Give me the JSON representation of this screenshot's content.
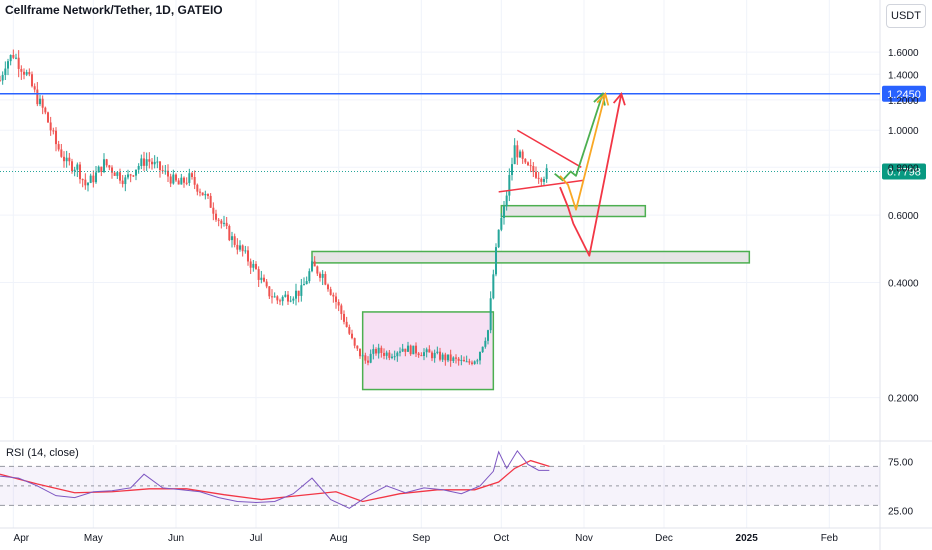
{
  "header": {
    "title": "Cellframe Network/Tether, 1D, GATEIO",
    "currency": "USDT"
  },
  "rsi": {
    "label": "RSI (14, close)",
    "ticks": [
      {
        "v": 75,
        "label": "75.00"
      },
      {
        "v": 25,
        "label": "25.00"
      }
    ]
  },
  "colors": {
    "up": "#26a69a",
    "down": "#ef5350",
    "level": "#2962ff",
    "zone_green": "#4caf50",
    "zone_fill": "#e0e0e0",
    "range_fill": "#f3d3f0",
    "rsi_line": "#7e57c2",
    "rsi_ma": "#f23645",
    "arrow_green": "#4caf50",
    "arrow_orange": "#f9a825",
    "arrow_red": "#f23645"
  },
  "chart_data": {
    "type": "candlestick",
    "y_scale": "log",
    "ylim": [
      0.155,
      1.85
    ],
    "y_ticks": [
      {
        "v": 1.6,
        "label": "1.6000"
      },
      {
        "v": 1.4,
        "label": "1.4000"
      },
      {
        "v": 1.2,
        "label": "1.2000"
      },
      {
        "v": 1.0,
        "label": "1.0000"
      },
      {
        "v": 0.8,
        "label": "0.8000"
      },
      {
        "v": 0.6,
        "label": "0.6000"
      },
      {
        "v": 0.4,
        "label": "0.4000"
      },
      {
        "v": 0.2,
        "label": "0.2000"
      }
    ],
    "x_ticks": [
      {
        "date": "2024-04-01",
        "label": "Apr"
      },
      {
        "date": "2024-05-01",
        "label": "May"
      },
      {
        "date": "2024-06-01",
        "label": "Jun"
      },
      {
        "date": "2024-07-01",
        "label": "Jul"
      },
      {
        "date": "2024-08-01",
        "label": "Aug"
      },
      {
        "date": "2024-09-01",
        "label": "Sep"
      },
      {
        "date": "2024-10-01",
        "label": "Oct"
      },
      {
        "date": "2024-11-01",
        "label": "Nov"
      },
      {
        "date": "2024-12-01",
        "label": "Dec"
      },
      {
        "date": "2025-01-01",
        "label": "2025"
      },
      {
        "date": "2025-02-01",
        "label": "Feb"
      }
    ],
    "price_path": [
      [
        "2024-03-27",
        1.35
      ],
      [
        "2024-03-29",
        1.5
      ],
      [
        "2024-04-01",
        1.58
      ],
      [
        "2024-04-03",
        1.5
      ],
      [
        "2024-04-06",
        1.4
      ],
      [
        "2024-04-09",
        1.25
      ],
      [
        "2024-04-13",
        1.1
      ],
      [
        "2024-04-17",
        0.92
      ],
      [
        "2024-04-21",
        0.82
      ],
      [
        "2024-04-25",
        0.8
      ],
      [
        "2024-04-28",
        0.72
      ],
      [
        "2024-05-01",
        0.75
      ],
      [
        "2024-05-05",
        0.82
      ],
      [
        "2024-05-09",
        0.78
      ],
      [
        "2024-05-13",
        0.74
      ],
      [
        "2024-05-17",
        0.8
      ],
      [
        "2024-05-21",
        0.84
      ],
      [
        "2024-05-25",
        0.8
      ],
      [
        "2024-05-29",
        0.76
      ],
      [
        "2024-06-02",
        0.72
      ],
      [
        "2024-06-06",
        0.75
      ],
      [
        "2024-06-10",
        0.7
      ],
      [
        "2024-06-14",
        0.64
      ],
      [
        "2024-06-18",
        0.57
      ],
      [
        "2024-06-22",
        0.52
      ],
      [
        "2024-06-26",
        0.48
      ],
      [
        "2024-07-01",
        0.43
      ],
      [
        "2024-07-05",
        0.38
      ],
      [
        "2024-07-09",
        0.36
      ],
      [
        "2024-07-13",
        0.37
      ],
      [
        "2024-07-18",
        0.38
      ],
      [
        "2024-07-22",
        0.44
      ],
      [
        "2024-07-26",
        0.42
      ],
      [
        "2024-07-30",
        0.37
      ],
      [
        "2024-08-03",
        0.32
      ],
      [
        "2024-08-07",
        0.27
      ],
      [
        "2024-08-11",
        0.25
      ],
      [
        "2024-08-15",
        0.265
      ],
      [
        "2024-08-20",
        0.26
      ],
      [
        "2024-08-25",
        0.27
      ],
      [
        "2024-08-30",
        0.265
      ],
      [
        "2024-09-04",
        0.26
      ],
      [
        "2024-09-09",
        0.255
      ],
      [
        "2024-09-14",
        0.25
      ],
      [
        "2024-09-18",
        0.245
      ],
      [
        "2024-09-22",
        0.255
      ],
      [
        "2024-09-26",
        0.3
      ],
      [
        "2024-09-28",
        0.42
      ],
      [
        "2024-09-30",
        0.55
      ],
      [
        "2024-10-02",
        0.62
      ],
      [
        "2024-10-04",
        0.75
      ],
      [
        "2024-10-06",
        0.9
      ],
      [
        "2024-10-08",
        0.85
      ],
      [
        "2024-10-10",
        0.8
      ],
      [
        "2024-10-13",
        0.78
      ],
      [
        "2024-10-16",
        0.76
      ],
      [
        "2024-10-19",
        0.78
      ]
    ],
    "last_price": 0.7798,
    "last_price_label": "0.7798",
    "level": {
      "value": 1.245,
      "label": "1.2450"
    },
    "zones": [
      {
        "x0": "2024-07-22",
        "x1": "2025-01-02",
        "y0": 0.45,
        "y1": 0.482
      },
      {
        "x0": "2024-10-01",
        "x1": "2024-11-24",
        "y0": 0.595,
        "y1": 0.635
      }
    ],
    "range_box": {
      "x0": "2024-08-10",
      "x1": "2024-09-28",
      "y0": 0.21,
      "y1": 0.335
    },
    "triangle": {
      "upper": [
        [
          "2024-10-07",
          1.0
        ],
        [
          "2024-10-31",
          0.8
        ]
      ],
      "lower": [
        [
          "2024-09-30",
          0.69
        ],
        [
          "2024-11-01",
          0.74
        ]
      ]
    },
    "scenarios": [
      {
        "color": "green",
        "path": [
          [
            "2024-10-21",
            0.77
          ],
          [
            "2024-10-24",
            0.74
          ],
          [
            "2024-10-27",
            0.78
          ],
          [
            "2024-10-29",
            0.76
          ],
          [
            "2024-11-08",
            1.245
          ]
        ]
      },
      {
        "color": "orange",
        "path": [
          [
            "2024-10-23",
            0.76
          ],
          [
            "2024-10-26",
            0.72
          ],
          [
            "2024-10-29",
            0.62
          ],
          [
            "2024-11-09",
            1.245
          ]
        ]
      },
      {
        "color": "red",
        "path": [
          [
            "2024-10-23",
            0.71
          ],
          [
            "2024-10-26",
            0.63
          ],
          [
            "2024-10-28",
            0.57
          ],
          [
            "2024-11-03",
            0.47
          ],
          [
            "2024-11-15",
            1.245
          ]
        ]
      }
    ],
    "rsi_path": [
      [
        "2024-03-27",
        60
      ],
      [
        "2024-04-03",
        58
      ],
      [
        "2024-04-10",
        50
      ],
      [
        "2024-04-17",
        40
      ],
      [
        "2024-04-24",
        38
      ],
      [
        "2024-05-01",
        44
      ],
      [
        "2024-05-08",
        45
      ],
      [
        "2024-05-15",
        48
      ],
      [
        "2024-05-20",
        62
      ],
      [
        "2024-05-27",
        48
      ],
      [
        "2024-06-03",
        46
      ],
      [
        "2024-06-10",
        44
      ],
      [
        "2024-06-17",
        38
      ],
      [
        "2024-06-24",
        34
      ],
      [
        "2024-07-01",
        33
      ],
      [
        "2024-07-08",
        34
      ],
      [
        "2024-07-15",
        42
      ],
      [
        "2024-07-22",
        58
      ],
      [
        "2024-07-29",
        36
      ],
      [
        "2024-08-05",
        27
      ],
      [
        "2024-08-12",
        40
      ],
      [
        "2024-08-19",
        50
      ],
      [
        "2024-08-26",
        43
      ],
      [
        "2024-09-02",
        48
      ],
      [
        "2024-09-09",
        46
      ],
      [
        "2024-09-16",
        42
      ],
      [
        "2024-09-23",
        50
      ],
      [
        "2024-09-28",
        65
      ],
      [
        "2024-09-30",
        85
      ],
      [
        "2024-10-03",
        68
      ],
      [
        "2024-10-07",
        86
      ],
      [
        "2024-10-11",
        72
      ],
      [
        "2024-10-15",
        66
      ],
      [
        "2024-10-19",
        66
      ]
    ],
    "rsi_ma_path": [
      [
        "2024-03-27",
        62
      ],
      [
        "2024-04-10",
        52
      ],
      [
        "2024-04-24",
        43
      ],
      [
        "2024-05-08",
        44
      ],
      [
        "2024-05-22",
        47
      ],
      [
        "2024-06-05",
        47
      ],
      [
        "2024-06-19",
        41
      ],
      [
        "2024-07-03",
        36
      ],
      [
        "2024-07-17",
        40
      ],
      [
        "2024-07-31",
        44
      ],
      [
        "2024-08-10",
        34
      ],
      [
        "2024-08-24",
        42
      ],
      [
        "2024-09-07",
        46
      ],
      [
        "2024-09-21",
        46
      ],
      [
        "2024-09-30",
        54
      ],
      [
        "2024-10-06",
        68
      ],
      [
        "2024-10-12",
        76
      ],
      [
        "2024-10-19",
        70
      ]
    ]
  }
}
